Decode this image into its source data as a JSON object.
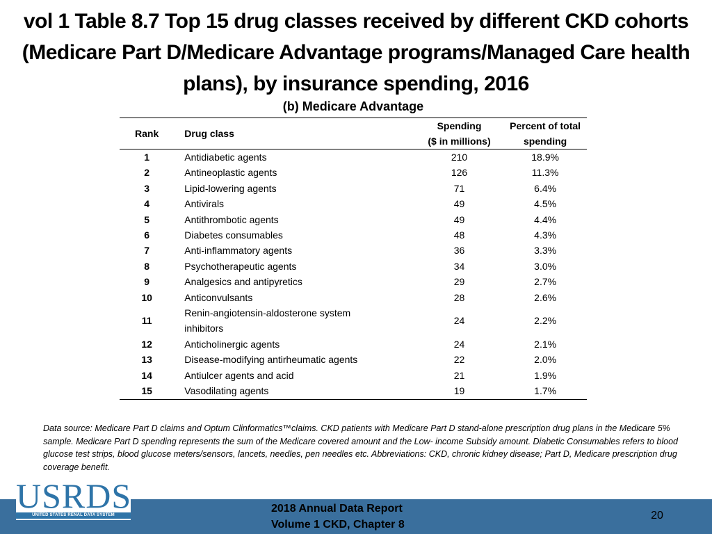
{
  "title": "vol 1 Table 8.7 Top 15 drug classes received by different CKD cohorts (Medicare Part D/Medicare Advantage programs/Managed Care health plans), by insurance spending, 2016",
  "subtitle": "(b) Medicare Advantage",
  "table": {
    "headers": {
      "rank": "Rank",
      "drug_class": "Drug class",
      "spending_line1": "Spending",
      "spending_line2": "($ in millions)",
      "percent_line1": "Percent of total",
      "percent_line2": "spending"
    },
    "rows": [
      {
        "rank": "1",
        "drug_class": "Antidiabetic agents",
        "spending": "210",
        "percent": "18.9%"
      },
      {
        "rank": "2",
        "drug_class": "Antineoplastic agents",
        "spending": "126",
        "percent": "11.3%"
      },
      {
        "rank": "3",
        "drug_class": "Lipid-lowering agents",
        "spending": "71",
        "percent": "6.4%"
      },
      {
        "rank": "4",
        "drug_class": "Antivirals",
        "spending": "49",
        "percent": "4.5%"
      },
      {
        "rank": "5",
        "drug_class": "Antithrombotic agents",
        "spending": "49",
        "percent": "4.4%"
      },
      {
        "rank": "6",
        "drug_class": "Diabetes consumables",
        "spending": "48",
        "percent": "4.3%"
      },
      {
        "rank": "7",
        "drug_class": "Anti-inflammatory agents",
        "spending": "36",
        "percent": "3.3%"
      },
      {
        "rank": "8",
        "drug_class": "Psychotherapeutic agents",
        "spending": "34",
        "percent": "3.0%"
      },
      {
        "rank": "9",
        "drug_class": "Analgesics and antipyretics",
        "spending": "29",
        "percent": "2.7%"
      },
      {
        "rank": "10",
        "drug_class": "Anticonvulsants",
        "spending": "28",
        "percent": "2.6%"
      },
      {
        "rank": "11",
        "drug_class": "Renin-angiotensin-aldosterone system",
        "drug_class_line2": "inhibitors",
        "spending": "24",
        "percent": "2.2%"
      },
      {
        "rank": "12",
        "drug_class": "Anticholinergic agents",
        "spending": "24",
        "percent": "2.1%"
      },
      {
        "rank": "13",
        "drug_class": "Disease-modifying antirheumatic agents",
        "spending": "22",
        "percent": "2.0%"
      },
      {
        "rank": "14",
        "drug_class": "Antiulcer agents and acid",
        "spending": "21",
        "percent": "1.9%"
      },
      {
        "rank": "15",
        "drug_class": "Vasodilating agents",
        "spending": "19",
        "percent": "1.7%"
      }
    ]
  },
  "footnote": "Data source: Medicare Part D claims and Optum Clinformatics™claims. CKD patients with Medicare Part D stand-alone prescription drug plans in the Medicare 5% sample. Medicare Part D spending represents the sum of the Medicare covered amount and the Low- income Subsidy amount. Diabetic Consumables refers to blood glucose test strips, blood glucose meters/sensors, lancets, needles, pen needles etc. Abbreviations: CKD, chronic kidney disease; Part D, Medicare prescription drug coverage benefit.",
  "footer": {
    "logo_text": "USRDS",
    "logo_subtext": "UNITED STATES RENAL DATA SYSTEM",
    "report_line1": "2018 Annual Data Report",
    "report_line2": "Volume 1 CKD, Chapter 8",
    "page_number": "20",
    "bar_color": "#3a6f9d",
    "logo_color": "#2e74a8"
  }
}
